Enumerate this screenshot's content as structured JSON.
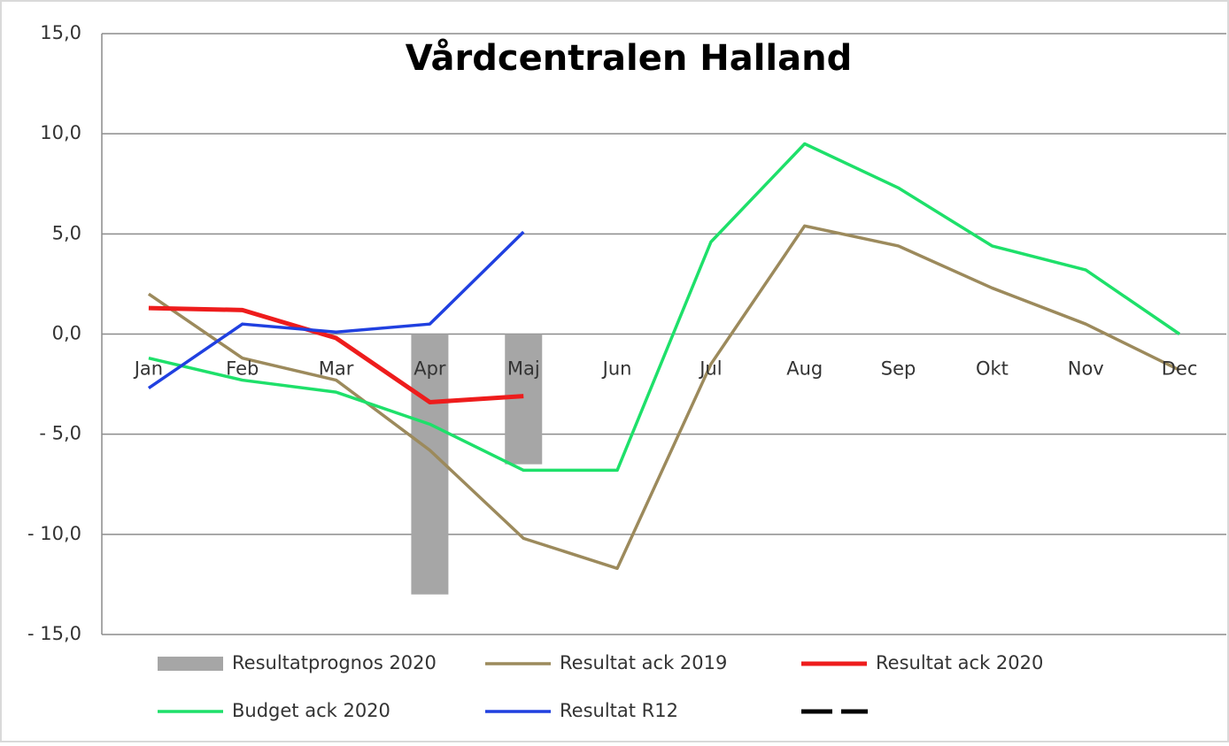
{
  "chart_data": {
    "type": "line",
    "title": "Vårdcentralen Halland",
    "categories": [
      "Jan",
      "Feb",
      "Mar",
      "Apr",
      "Maj",
      "Jun",
      "Jul",
      "Aug",
      "Sep",
      "Okt",
      "Nov",
      "Dec"
    ],
    "series": [
      {
        "name": "Resultatprognos 2020",
        "type": "bar",
        "color": "#a6a6a6",
        "values": [
          null,
          null,
          null,
          -13.0,
          -6.5,
          null,
          null,
          null,
          null,
          null,
          null,
          null
        ]
      },
      {
        "name": "Resultat ack 2019",
        "type": "line",
        "color": "#9c8a5c",
        "values": [
          2.0,
          -1.2,
          -2.3,
          -5.8,
          -10.2,
          -11.7,
          -1.5,
          5.4,
          4.4,
          2.3,
          0.5,
          -1.8
        ]
      },
      {
        "name": "Resultat ack 2020",
        "type": "line",
        "color": "#ee1c1c",
        "values": [
          1.3,
          1.2,
          -0.2,
          -3.4,
          -3.1,
          null,
          null,
          null,
          null,
          null,
          null,
          null
        ]
      },
      {
        "name": "Budget ack 2020",
        "type": "line",
        "color": "#1ee06a",
        "values": [
          -1.2,
          -2.3,
          -2.9,
          -4.5,
          -6.8,
          -6.8,
          4.6,
          9.5,
          7.3,
          4.4,
          3.2,
          0.0
        ]
      },
      {
        "name": "Resultat R12",
        "type": "line",
        "color": "#2040e0",
        "values": [
          -2.7,
          0.5,
          0.1,
          0.5,
          5.1,
          null,
          null,
          null,
          null,
          null,
          null,
          null
        ]
      }
    ],
    "ylim": [
      -15,
      15
    ],
    "yticks": [
      {
        "value": 15,
        "label": "15,0"
      },
      {
        "value": 10,
        "label": "10,0"
      },
      {
        "value": 5,
        "label": "5,0"
      },
      {
        "value": 0,
        "label": "0,0"
      },
      {
        "value": -5,
        "label": "- 5,0"
      },
      {
        "value": -10,
        "label": "- 10,0"
      },
      {
        "value": -15,
        "label": "- 15,0"
      }
    ],
    "grid": true
  }
}
